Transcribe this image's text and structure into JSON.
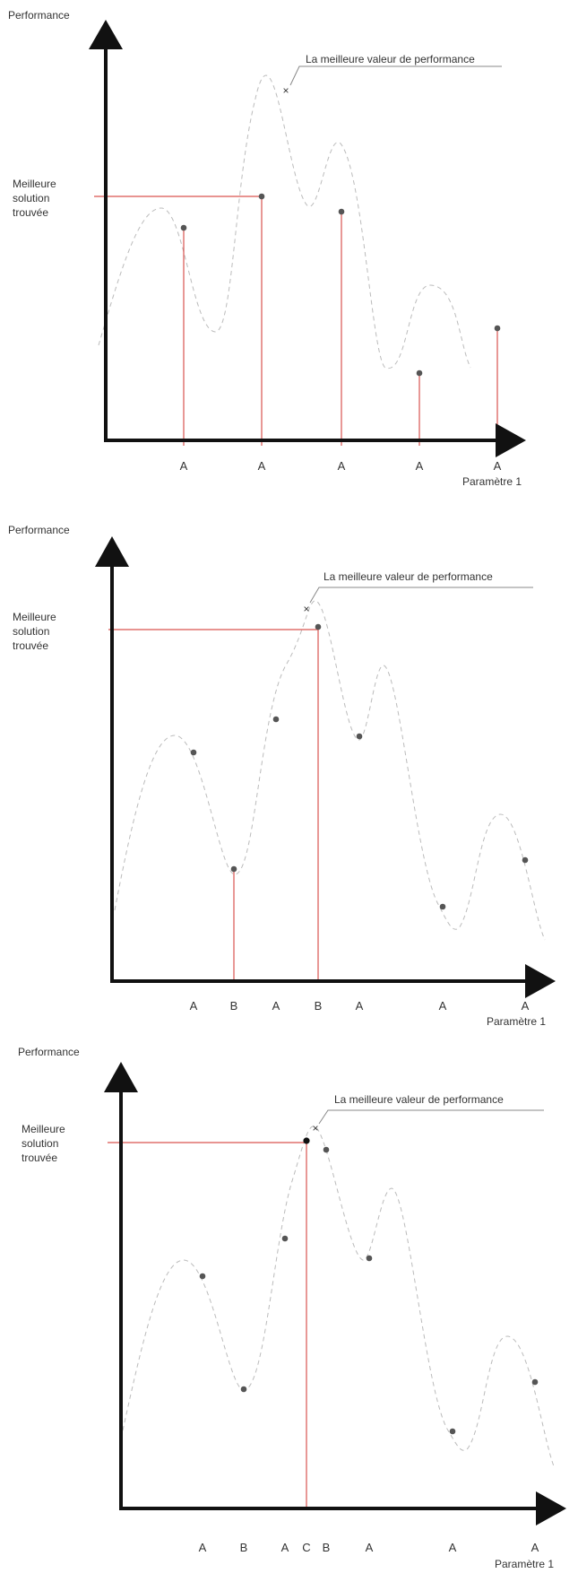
{
  "colors": {
    "axis": "#111111",
    "curve": "#bbbbbb",
    "red_line": "#d9534f",
    "leader": "#888888",
    "point": "#555555",
    "best_point": "#111111",
    "text": "#333333"
  },
  "panels": [
    {
      "y_axis_label": "Performance",
      "x_axis_label": "Paramètre 1",
      "best_found_label": [
        "Meilleure",
        "solution",
        "trouvée"
      ],
      "optimum_label": "La meilleure valeur de performance",
      "optimum_marker": "×",
      "tick_labels": [
        "A",
        "A",
        "A",
        "A",
        "A"
      ]
    },
    {
      "y_axis_label": "Performance",
      "x_axis_label": "Paramètre 1",
      "best_found_label": [
        "Meilleure",
        "solution",
        "trouvée"
      ],
      "optimum_label": "La meilleure valeur de performance",
      "optimum_marker": "×",
      "tick_labels": [
        "A",
        "B",
        "A",
        "B",
        "A",
        "A",
        "A"
      ]
    },
    {
      "y_axis_label": "Performance",
      "x_axis_label": "Paramètre 1",
      "best_found_label": [
        "Meilleure",
        "solution",
        "trouvée"
      ],
      "optimum_label": "La meilleure valeur de performance",
      "optimum_marker": "×",
      "tick_labels": [
        "A",
        "B",
        "A",
        "C",
        "B",
        "A",
        "A",
        "A"
      ]
    }
  ]
}
